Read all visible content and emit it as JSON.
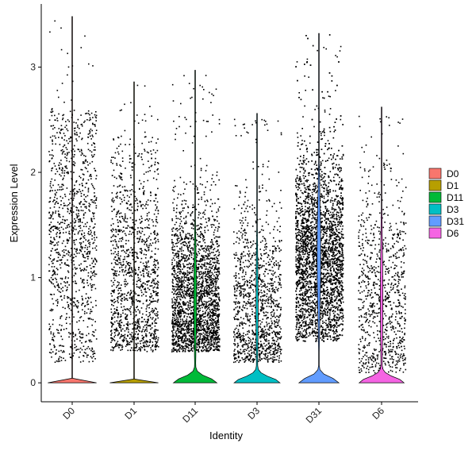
{
  "chart_data": {
    "type": "violin",
    "title": "",
    "xlabel": "Identity",
    "ylabel": "Expression Level",
    "ylim": [
      -0.18,
      3.6
    ],
    "yticks": [
      0,
      1,
      2,
      3
    ],
    "grid": false,
    "legend_position": "right",
    "categories": [
      "D0",
      "D1",
      "D11",
      "D3",
      "D31",
      "D6"
    ],
    "series": [
      {
        "name": "D0",
        "color": "#F8766D",
        "max": 3.48,
        "median": 0.0,
        "frac_nonzero": 0.18,
        "jitter_n": 1150
      },
      {
        "name": "D1",
        "color": "#B79F00",
        "max": 2.86,
        "median": 0.0,
        "frac_nonzero": 0.2,
        "jitter_n": 1300
      },
      {
        "name": "D11",
        "color": "#00BA38",
        "max": 2.97,
        "median": 0.0,
        "frac_nonzero": 0.45,
        "jitter_n": 2400
      },
      {
        "name": "D3",
        "color": "#00BFC4",
        "max": 2.56,
        "median": 0.0,
        "frac_nonzero": 0.35,
        "jitter_n": 1200
      },
      {
        "name": "D31",
        "color": "#619CFF",
        "max": 3.32,
        "median": 0.0,
        "frac_nonzero": 0.6,
        "jitter_n": 4200
      },
      {
        "name": "D6",
        "color": "#F564E3",
        "max": 2.62,
        "median": 0.0,
        "frac_nonzero": 0.4,
        "jitter_n": 900
      }
    ]
  }
}
